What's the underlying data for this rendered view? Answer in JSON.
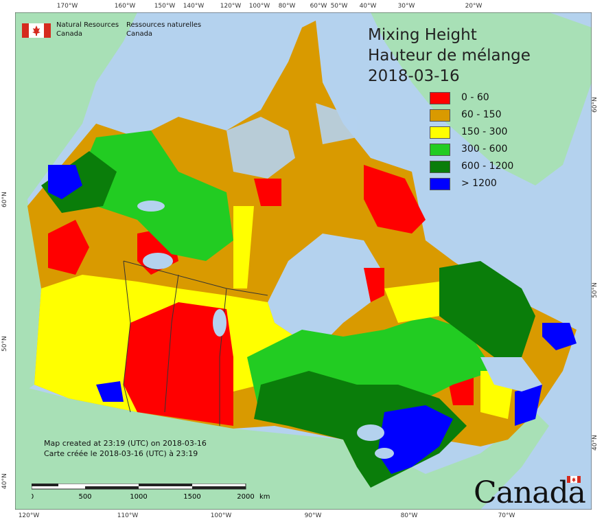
{
  "title": {
    "line1": "Mixing Height",
    "line2": "Hauteur de mélange",
    "date": "2018-03-16"
  },
  "agency": {
    "name_en_line1": "Natural Resources",
    "name_en_line2": "Canada",
    "name_fr_line1": "Ressources naturelles",
    "name_fr_line2": "Canada"
  },
  "legend": [
    {
      "label": "0 - 60",
      "color": "#ff0000"
    },
    {
      "label": "60 - 150",
      "color": "#d99a00"
    },
    {
      "label": "150 - 300",
      "color": "#ffff00"
    },
    {
      "label": "300 - 600",
      "color": "#22cc22"
    },
    {
      "label": "600 - 1200",
      "color": "#0a7d0a"
    },
    {
      "label": "> 1200",
      "color": "#0000ff"
    }
  ],
  "credits": {
    "en": "Map created at 23:19 (UTC) on 2018-03-16",
    "fr": "Carte créée le 2018-03-16 (UTC) à 23:19"
  },
  "scale": {
    "labels": [
      "0",
      "500",
      "1000",
      "1500",
      "2000"
    ],
    "unit": "km"
  },
  "wordmark": "Canada",
  "graticule": {
    "top": [
      "170°W",
      "160°W",
      "150°W",
      "140°W",
      "120°W",
      "100°W",
      "80°W",
      "60°W",
      "50°W",
      "40°W",
      "30°W",
      "20°W"
    ],
    "bottom": [
      "120°W",
      "110°W",
      "100°W",
      "90°W",
      "80°W",
      "70°W"
    ],
    "left": [
      "60°N",
      "50°N",
      "40°N"
    ],
    "right": [
      "60°N",
      "50°N",
      "40°N"
    ]
  },
  "colors": {
    "ocean": "#b4d2ee",
    "foreign_land": "#a8e0b6",
    "lake": "#b4d2ee"
  }
}
